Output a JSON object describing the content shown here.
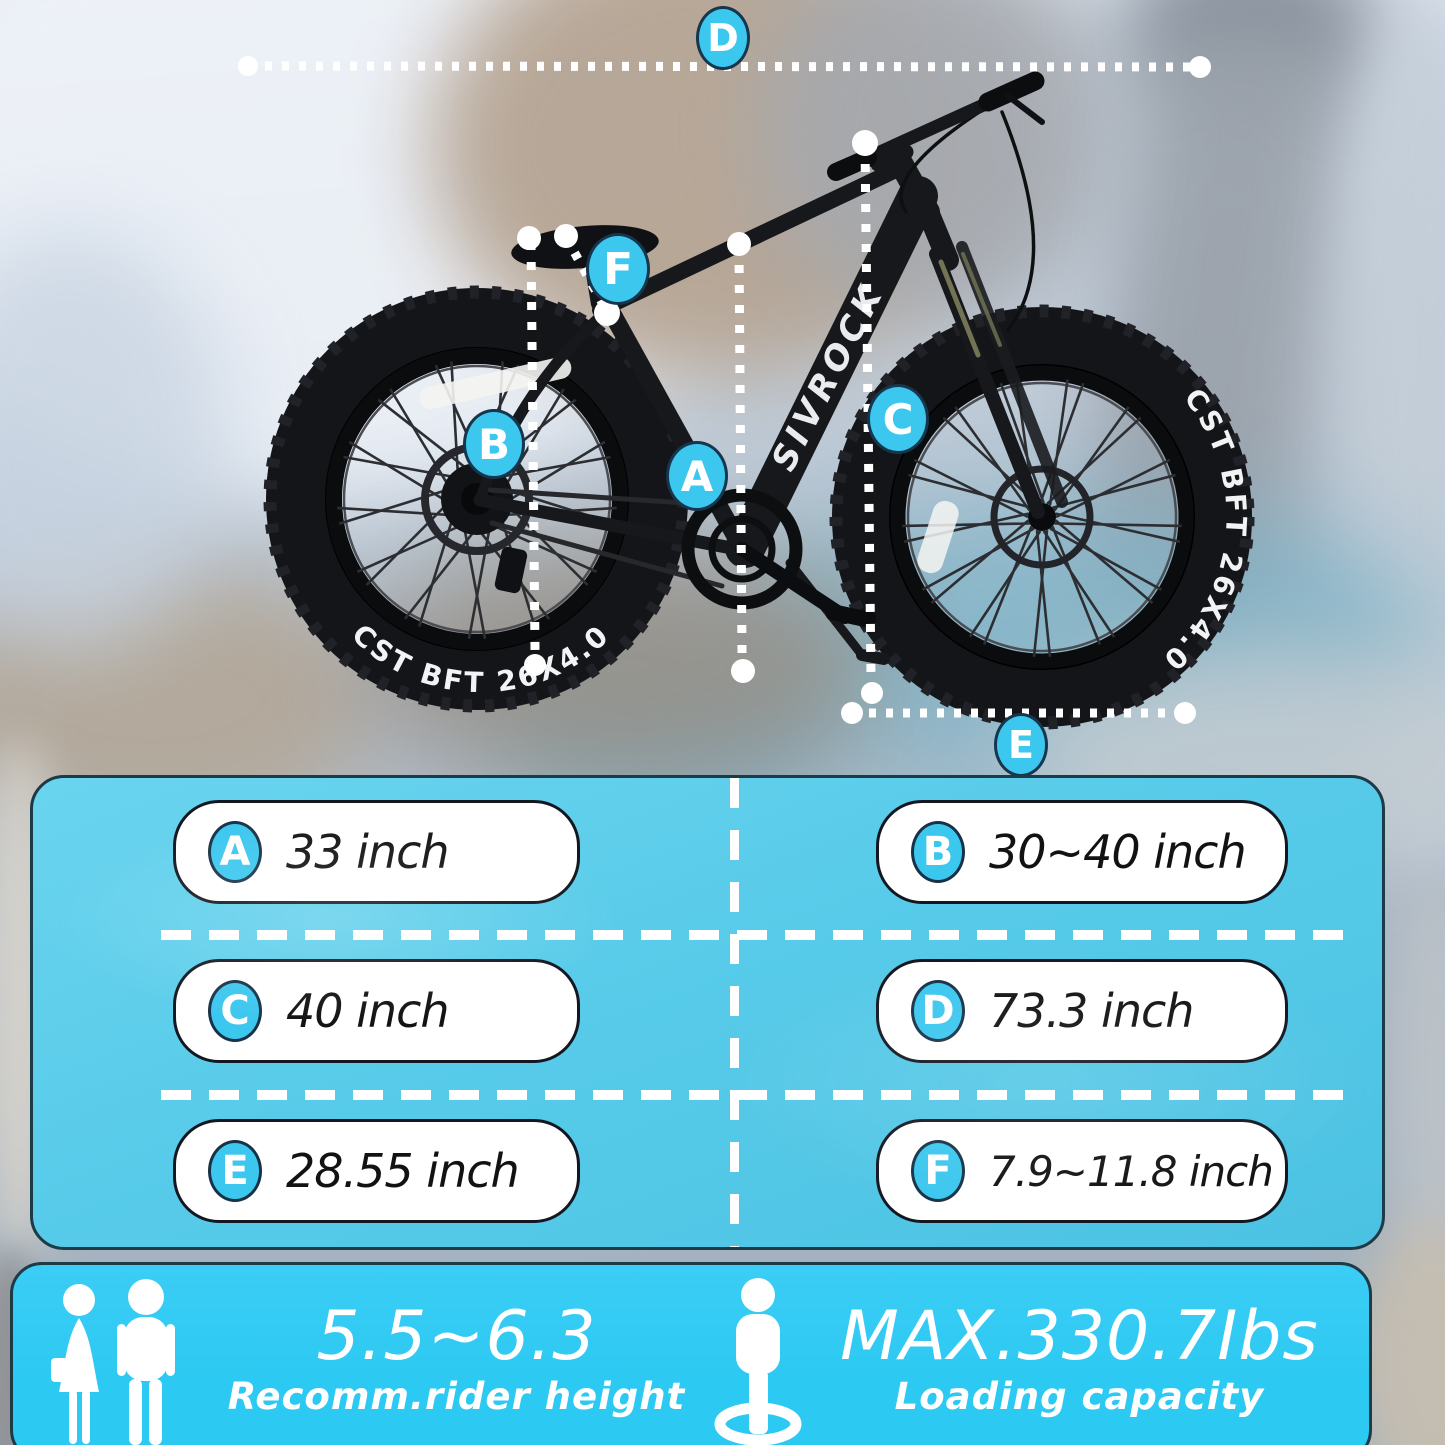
{
  "bike": {
    "brand": "SIVROCK",
    "tire_text_rear": "CST BFT 26X4.0",
    "tire_text_front": "CST BFT 26X4.0"
  },
  "markers": {
    "a": "A",
    "b": "B",
    "c": "C",
    "d": "D",
    "e": "E",
    "f": "F"
  },
  "specs": {
    "rows": [
      {
        "id": "A",
        "value": "33 inch"
      },
      {
        "id": "B",
        "value": "30~40 inch"
      },
      {
        "id": "C",
        "value": "40 inch"
      },
      {
        "id": "D",
        "value": "73.3 inch"
      },
      {
        "id": "E",
        "value": "28.55 inch"
      },
      {
        "id": "F",
        "value": "7.9~11.8 inch"
      }
    ]
  },
  "footer": {
    "rider": {
      "value": "5.5~6.3",
      "label": "Recomm.rider height"
    },
    "loading": {
      "value": "MAX.330.7Ibs",
      "label": "Loading capacity"
    }
  },
  "colors": {
    "panel": "#57cbe9",
    "bar": "#2cc9f2",
    "accent": "#3cc7ef",
    "outline": "#173247"
  }
}
